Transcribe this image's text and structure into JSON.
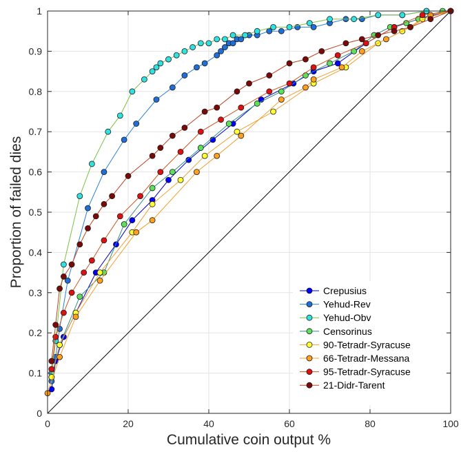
{
  "chart_data": {
    "type": "line",
    "xlabel": "Cumulative coin output %",
    "ylabel": "Proportion of failed dies",
    "xlim": [
      0,
      100
    ],
    "ylim": [
      0,
      1
    ],
    "xticks": [
      0,
      20,
      40,
      60,
      80,
      100
    ],
    "yticks": [
      0,
      0.1,
      0.2,
      0.3,
      0.4,
      0.5,
      0.6,
      0.7,
      0.8,
      0.9,
      1
    ],
    "grid": true,
    "legend_position": "bottom-right",
    "reference_line": {
      "from": [
        0,
        0
      ],
      "to": [
        100,
        1
      ],
      "color": "#000000"
    },
    "series": [
      {
        "name": "Crepusius",
        "line_color": "#0000cc",
        "marker_color": "#0000ff",
        "points": [
          [
            1,
            0.06
          ],
          [
            2,
            0.13
          ],
          [
            4,
            0.19
          ],
          [
            7,
            0.25
          ],
          [
            12,
            0.35
          ],
          [
            17,
            0.42
          ],
          [
            21,
            0.48
          ],
          [
            26,
            0.53
          ],
          [
            30,
            0.58
          ],
          [
            35,
            0.63
          ],
          [
            41,
            0.68
          ],
          [
            46,
            0.72
          ],
          [
            53,
            0.78
          ],
          [
            61,
            0.82
          ],
          [
            66,
            0.85
          ],
          [
            72,
            0.87
          ],
          [
            79,
            0.92
          ],
          [
            86,
            0.96
          ],
          [
            92,
            0.98
          ],
          [
            100,
            1.0
          ]
        ]
      },
      {
        "name": "Yehud-Rev",
        "line_color": "#2980d8",
        "marker_color": "#1f6fd6",
        "points": [
          [
            1,
            0.08
          ],
          [
            2,
            0.14
          ],
          [
            3,
            0.21
          ],
          [
            5,
            0.33
          ],
          [
            10,
            0.51
          ],
          [
            14,
            0.6
          ],
          [
            19,
            0.68
          ],
          [
            22,
            0.72
          ],
          [
            27,
            0.78
          ],
          [
            31,
            0.81
          ],
          [
            34,
            0.84
          ],
          [
            37,
            0.86
          ],
          [
            39,
            0.87
          ],
          [
            42,
            0.89
          ],
          [
            43,
            0.9
          ],
          [
            44,
            0.91
          ],
          [
            45,
            0.92
          ],
          [
            46,
            0.92
          ],
          [
            47,
            0.93
          ],
          [
            48,
            0.93
          ],
          [
            50,
            0.94
          ],
          [
            52,
            0.94
          ],
          [
            55,
            0.95
          ],
          [
            58,
            0.95
          ],
          [
            62,
            0.96
          ],
          [
            66,
            0.96
          ],
          [
            70,
            0.97
          ],
          [
            74,
            0.98
          ],
          [
            78,
            0.98
          ],
          [
            82,
            0.99
          ],
          [
            88,
            0.99
          ],
          [
            94,
            1.0
          ],
          [
            100,
            1.0
          ]
        ]
      },
      {
        "name": "Yehud-Obv",
        "line_color": "#7bc142",
        "marker_color": "#33e0e0",
        "points": [
          [
            1,
            0.1
          ],
          [
            2,
            0.18
          ],
          [
            4,
            0.37
          ],
          [
            8,
            0.54
          ],
          [
            11,
            0.62
          ],
          [
            15,
            0.7
          ],
          [
            18,
            0.74
          ],
          [
            21,
            0.8
          ],
          [
            24,
            0.83
          ],
          [
            26,
            0.85
          ],
          [
            27,
            0.86
          ],
          [
            28,
            0.87
          ],
          [
            30,
            0.88
          ],
          [
            32,
            0.89
          ],
          [
            34,
            0.9
          ],
          [
            36,
            0.91
          ],
          [
            38,
            0.92
          ],
          [
            40,
            0.92
          ],
          [
            42,
            0.93
          ],
          [
            44,
            0.93
          ],
          [
            46,
            0.94
          ],
          [
            49,
            0.94
          ],
          [
            52,
            0.95
          ],
          [
            56,
            0.96
          ],
          [
            60,
            0.96
          ],
          [
            65,
            0.97
          ],
          [
            70,
            0.98
          ],
          [
            76,
            0.98
          ],
          [
            82,
            0.99
          ],
          [
            88,
            0.99
          ],
          [
            94,
            1.0
          ],
          [
            100,
            1.0
          ]
        ]
      },
      {
        "name": "Censorinus",
        "line_color": "#2d8f80",
        "marker_color": "#5ee05e",
        "points": [
          [
            1,
            0.09
          ],
          [
            3,
            0.17
          ],
          [
            8,
            0.29
          ],
          [
            14,
            0.35
          ],
          [
            19,
            0.47
          ],
          [
            26,
            0.56
          ],
          [
            31,
            0.6
          ],
          [
            38,
            0.66
          ],
          [
            45,
            0.72
          ],
          [
            52,
            0.77
          ],
          [
            58,
            0.8
          ],
          [
            64,
            0.84
          ],
          [
            70,
            0.87
          ],
          [
            76,
            0.9
          ],
          [
            81,
            0.94
          ],
          [
            85,
            0.96
          ],
          [
            89,
            0.97
          ],
          [
            92,
            0.98
          ],
          [
            95,
            0.99
          ],
          [
            98,
            1.0
          ],
          [
            100,
            1.0
          ]
        ]
      },
      {
        "name": "90-Tetradr-Syracuse",
        "line_color": "#f0a030",
        "marker_color": "#ffff33",
        "points": [
          [
            1,
            0.09
          ],
          [
            3,
            0.17
          ],
          [
            7,
            0.25
          ],
          [
            13,
            0.35
          ],
          [
            21,
            0.45
          ],
          [
            26,
            0.52
          ],
          [
            33,
            0.58
          ],
          [
            39,
            0.64
          ],
          [
            47,
            0.7
          ],
          [
            56,
            0.75
          ],
          [
            66,
            0.82
          ],
          [
            74,
            0.86
          ],
          [
            82,
            0.92
          ],
          [
            88,
            0.95
          ],
          [
            93,
            0.98
          ],
          [
            100,
            1.0
          ]
        ]
      },
      {
        "name": "66-Tetradr-Messana",
        "line_color": "#f0a030",
        "marker_color": "#ffa020",
        "points": [
          [
            0,
            0.05
          ],
          [
            3,
            0.14
          ],
          [
            7,
            0.24
          ],
          [
            13,
            0.33
          ],
          [
            22,
            0.45
          ],
          [
            26,
            0.48
          ],
          [
            37,
            0.6
          ],
          [
            42,
            0.64
          ],
          [
            48,
            0.69
          ],
          [
            58,
            0.78
          ],
          [
            64,
            0.81
          ],
          [
            66,
            0.83
          ],
          [
            73,
            0.86
          ],
          [
            78,
            0.9
          ],
          [
            84,
            0.93
          ],
          [
            90,
            0.96
          ],
          [
            95,
            0.99
          ],
          [
            100,
            1.0
          ]
        ]
      },
      {
        "name": "95-Tetradr-Syracuse",
        "line_color": "#cc5522",
        "marker_color": "#dd1111",
        "points": [
          [
            1,
            0.11
          ],
          [
            2,
            0.19
          ],
          [
            4,
            0.25
          ],
          [
            6,
            0.3
          ],
          [
            9,
            0.35
          ],
          [
            11,
            0.38
          ],
          [
            14,
            0.43
          ],
          [
            18,
            0.49
          ],
          [
            23,
            0.54
          ],
          [
            28,
            0.6
          ],
          [
            33,
            0.65
          ],
          [
            38,
            0.7
          ],
          [
            43,
            0.73
          ],
          [
            48,
            0.76
          ],
          [
            55,
            0.8
          ],
          [
            60,
            0.82
          ],
          [
            66,
            0.86
          ],
          [
            72,
            0.89
          ],
          [
            79,
            0.92
          ],
          [
            86,
            0.96
          ],
          [
            93,
            0.99
          ],
          [
            100,
            1.0
          ]
        ]
      },
      {
        "name": "21-Didr-Tarent",
        "line_color": "#c04020",
        "marker_color": "#7a0a0a",
        "points": [
          [
            1,
            0.13
          ],
          [
            2,
            0.22
          ],
          [
            3,
            0.31
          ],
          [
            4,
            0.34
          ],
          [
            6,
            0.37
          ],
          [
            8,
            0.42
          ],
          [
            10,
            0.46
          ],
          [
            12,
            0.49
          ],
          [
            14,
            0.52
          ],
          [
            16,
            0.54
          ],
          [
            20,
            0.59
          ],
          [
            26,
            0.64
          ],
          [
            28,
            0.66
          ],
          [
            31,
            0.69
          ],
          [
            34,
            0.71
          ],
          [
            39,
            0.75
          ],
          [
            42,
            0.76
          ],
          [
            47,
            0.8
          ],
          [
            50,
            0.82
          ],
          [
            55,
            0.84
          ],
          [
            60,
            0.87
          ],
          [
            64,
            0.88
          ],
          [
            68,
            0.9
          ],
          [
            74,
            0.92
          ],
          [
            78,
            0.93
          ],
          [
            82,
            0.94
          ],
          [
            86,
            0.95
          ],
          [
            90,
            0.96
          ],
          [
            95,
            0.98
          ],
          [
            100,
            1.0
          ]
        ]
      }
    ]
  }
}
